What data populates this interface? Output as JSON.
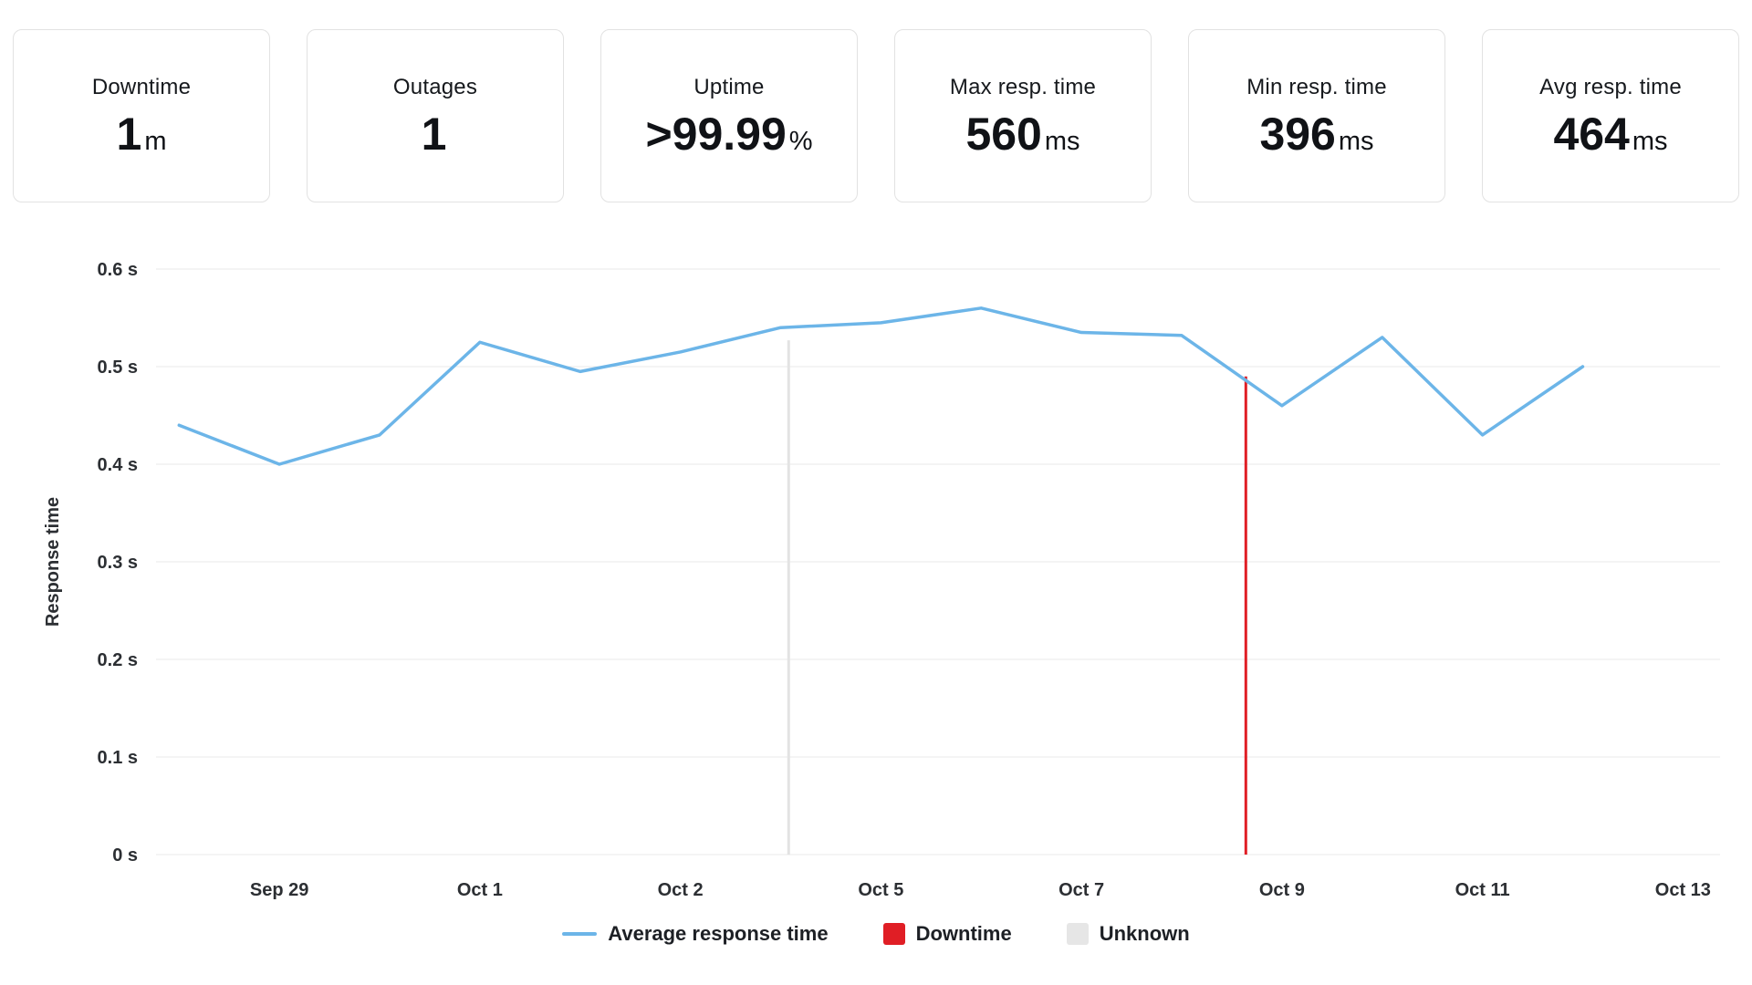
{
  "stats": [
    {
      "label": "Downtime",
      "value": "1",
      "unit": "m"
    },
    {
      "label": "Outages",
      "value": "1",
      "unit": ""
    },
    {
      "label": "Uptime",
      "value": ">99.99",
      "unit": "%"
    },
    {
      "label": "Max resp. time",
      "value": "560",
      "unit": "ms"
    },
    {
      "label": "Min resp. time",
      "value": "396",
      "unit": "ms"
    },
    {
      "label": "Avg resp. time",
      "value": "464",
      "unit": "ms"
    }
  ],
  "chart_data": {
    "type": "line",
    "title": "",
    "xlabel": "",
    "ylabel": "Response time",
    "ylim": [
      0,
      0.6
    ],
    "xlim": [
      -0.23,
      15.37
    ],
    "grid": "horizontal",
    "legend_position": "bottom-center",
    "yticks": [
      {
        "value": 0,
        "label": "0 s"
      },
      {
        "value": 0.1,
        "label": "0.1 s"
      },
      {
        "value": 0.2,
        "label": "0.2 s"
      },
      {
        "value": 0.3,
        "label": "0.3 s"
      },
      {
        "value": 0.4,
        "label": "0.4 s"
      },
      {
        "value": 0.5,
        "label": "0.5 s"
      },
      {
        "value": 0.6,
        "label": "0.6 s"
      }
    ],
    "xticks": [
      {
        "x": 1,
        "label": "Sep 29"
      },
      {
        "x": 3,
        "label": "Oct 1"
      },
      {
        "x": 5,
        "label": "Oct 2"
      },
      {
        "x": 7,
        "label": "Oct 5"
      },
      {
        "x": 9,
        "label": "Oct 7"
      },
      {
        "x": 11,
        "label": "Oct 9"
      },
      {
        "x": 13,
        "label": "Oct 11"
      },
      {
        "x": 15,
        "label": "Oct 13"
      }
    ],
    "series": [
      {
        "name": "Average response time",
        "color": "#6cb5e8",
        "x": [
          0,
          1,
          2,
          3,
          4,
          5,
          6,
          7,
          8,
          9,
          10,
          11,
          12,
          13,
          14
        ],
        "values": [
          0.44,
          0.4,
          0.43,
          0.525,
          0.495,
          0.515,
          0.54,
          0.545,
          0.56,
          0.535,
          0.532,
          0.46,
          0.53,
          0.43,
          0.5
        ]
      }
    ],
    "markers": [
      {
        "kind": "unknown",
        "x": 6.08,
        "from": 0,
        "to": 0.527,
        "color": "#e3e3e3"
      },
      {
        "kind": "downtime",
        "x": 10.64,
        "from": 0,
        "to": 0.49,
        "color": "#e01e25"
      }
    ],
    "legend": [
      {
        "label": "Average response time",
        "swatch": "line",
        "color": "#6cb5e8"
      },
      {
        "label": "Downtime",
        "swatch": "square",
        "color": "#e01e25"
      },
      {
        "label": "Unknown",
        "swatch": "square",
        "color": "#e6e6e6"
      }
    ]
  },
  "colors": {
    "background": "#ffffff",
    "card_border": "#e2e2e2",
    "grid": "#e9e9e9",
    "text": "#16191d",
    "line": "#6cb5e8",
    "downtime": "#e01e25",
    "unknown": "#e6e6e6"
  }
}
